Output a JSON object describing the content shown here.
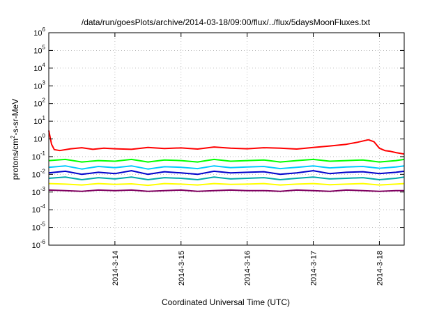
{
  "chart_data": {
    "type": "line",
    "title": "/data/run/goesPlots/archive/2014-03-18/09:00/flux/../flux/5daysMoonFluxes.txt",
    "xlabel": "Coordinated Universal Time (UTC)",
    "ylabel": {
      "pre": "protons/cm",
      "sup": "2",
      "post": "-s-sr-MeV"
    },
    "y_scale": "log",
    "ylim": [
      "1e-6",
      "1e6"
    ],
    "xlim": [
      "2014-03-13T00:00",
      "2014-03-18T09:00"
    ],
    "grid": true,
    "legend": "none",
    "y_ticks": [
      {
        "value": "1e6",
        "base": "10",
        "exp": "6"
      },
      {
        "value": "1e5",
        "base": "10",
        "exp": "5"
      },
      {
        "value": "1e4",
        "base": "10",
        "exp": "4"
      },
      {
        "value": "1e3",
        "base": "10",
        "exp": "3"
      },
      {
        "value": "1e2",
        "base": "10",
        "exp": "2"
      },
      {
        "value": "1e1",
        "base": "10",
        "exp": "1"
      },
      {
        "value": "1e0",
        "base": "10",
        "exp": "0"
      },
      {
        "value": "1e-1",
        "base": "10",
        "exp": "-1"
      },
      {
        "value": "1e-2",
        "base": "10",
        "exp": "-2"
      },
      {
        "value": "1e-3",
        "base": "10",
        "exp": "-3"
      },
      {
        "value": "1e-4",
        "base": "10",
        "exp": "-4"
      },
      {
        "value": "1e-5",
        "base": "10",
        "exp": "-5"
      },
      {
        "value": "1e-6",
        "base": "10",
        "exp": "-6"
      }
    ],
    "x_ticks": [
      {
        "date": "2014-03-14T00:00",
        "label": "2014-3-14"
      },
      {
        "date": "2014-03-15T00:00",
        "label": "2014-3-15"
      },
      {
        "date": "2014-03-16T00:00",
        "label": "2014-3-16"
      },
      {
        "date": "2014-03-17T00:00",
        "label": "2014-3-17"
      },
      {
        "date": "2014-03-18T00:00",
        "label": "2014-3-18"
      }
    ],
    "series": [
      {
        "color": "#ff0000",
        "x": [
          "2014-03-13T00:00",
          "2014-03-13T01:00",
          "2014-03-13T02:00",
          "2014-03-13T04:00",
          "2014-03-13T08:00",
          "2014-03-13T12:00",
          "2014-03-13T16:00",
          "2014-03-13T20:00",
          "2014-03-14T00:00",
          "2014-03-14T06:00",
          "2014-03-14T12:00",
          "2014-03-14T18:00",
          "2014-03-15T00:00",
          "2014-03-15T06:00",
          "2014-03-15T12:00",
          "2014-03-15T18:00",
          "2014-03-16T00:00",
          "2014-03-16T06:00",
          "2014-03-16T12:00",
          "2014-03-16T18:00",
          "2014-03-17T00:00",
          "2014-03-17T06:00",
          "2014-03-17T12:00",
          "2014-03-17T16:00",
          "2014-03-17T20:00",
          "2014-03-17T22:00",
          "2014-03-18T00:00",
          "2014-03-18T02:00",
          "2014-03-18T04:00",
          "2014-03-18T06:00",
          "2014-03-18T09:00"
        ],
        "y": [
          3.0,
          0.5,
          0.25,
          0.22,
          0.28,
          0.32,
          0.26,
          0.3,
          0.28,
          0.26,
          0.33,
          0.29,
          0.31,
          0.27,
          0.35,
          0.3,
          0.28,
          0.32,
          0.3,
          0.27,
          0.33,
          0.4,
          0.5,
          0.65,
          0.9,
          0.7,
          0.3,
          0.22,
          0.2,
          0.17,
          0.14
        ]
      },
      {
        "color": "#00ff00",
        "x": [
          "2014-03-13T00:00",
          "2014-03-13T06:00",
          "2014-03-13T12:00",
          "2014-03-13T18:00",
          "2014-03-14T00:00",
          "2014-03-14T06:00",
          "2014-03-14T12:00",
          "2014-03-14T18:00",
          "2014-03-15T00:00",
          "2014-03-15T06:00",
          "2014-03-15T12:00",
          "2014-03-15T18:00",
          "2014-03-16T00:00",
          "2014-03-16T06:00",
          "2014-03-16T12:00",
          "2014-03-16T18:00",
          "2014-03-17T00:00",
          "2014-03-17T06:00",
          "2014-03-17T12:00",
          "2014-03-17T18:00",
          "2014-03-18T00:00",
          "2014-03-18T06:00",
          "2014-03-18T09:00"
        ],
        "y": [
          0.06,
          0.07,
          0.05,
          0.06,
          0.055,
          0.07,
          0.05,
          0.065,
          0.06,
          0.05,
          0.07,
          0.055,
          0.06,
          0.065,
          0.05,
          0.06,
          0.07,
          0.055,
          0.06,
          0.065,
          0.05,
          0.06,
          0.07
        ]
      },
      {
        "color": "#00ccff",
        "x": [
          "2014-03-13T00:00",
          "2014-03-13T06:00",
          "2014-03-13T12:00",
          "2014-03-13T18:00",
          "2014-03-14T00:00",
          "2014-03-14T06:00",
          "2014-03-14T12:00",
          "2014-03-14T18:00",
          "2014-03-15T00:00",
          "2014-03-15T06:00",
          "2014-03-15T12:00",
          "2014-03-15T18:00",
          "2014-03-16T00:00",
          "2014-03-16T06:00",
          "2014-03-16T12:00",
          "2014-03-16T18:00",
          "2014-03-17T00:00",
          "2014-03-17T06:00",
          "2014-03-17T12:00",
          "2014-03-17T18:00",
          "2014-03-18T00:00",
          "2014-03-18T06:00",
          "2014-03-18T09:00"
        ],
        "y": [
          0.025,
          0.03,
          0.02,
          0.028,
          0.024,
          0.03,
          0.02,
          0.027,
          0.025,
          0.021,
          0.03,
          0.024,
          0.026,
          0.028,
          0.021,
          0.025,
          0.03,
          0.023,
          0.026,
          0.028,
          0.022,
          0.026,
          0.03
        ]
      },
      {
        "color": "#0000cc",
        "x": [
          "2014-03-13T00:00",
          "2014-03-13T06:00",
          "2014-03-13T12:00",
          "2014-03-13T18:00",
          "2014-03-14T00:00",
          "2014-03-14T06:00",
          "2014-03-14T12:00",
          "2014-03-14T18:00",
          "2014-03-15T00:00",
          "2014-03-15T06:00",
          "2014-03-15T12:00",
          "2014-03-15T18:00",
          "2014-03-16T00:00",
          "2014-03-16T06:00",
          "2014-03-16T12:00",
          "2014-03-16T18:00",
          "2014-03-17T00:00",
          "2014-03-17T06:00",
          "2014-03-17T12:00",
          "2014-03-17T18:00",
          "2014-03-18T00:00",
          "2014-03-18T06:00",
          "2014-03-18T09:00"
        ],
        "y": [
          0.012,
          0.015,
          0.01,
          0.013,
          0.011,
          0.016,
          0.01,
          0.014,
          0.012,
          0.01,
          0.015,
          0.012,
          0.013,
          0.014,
          0.01,
          0.012,
          0.016,
          0.011,
          0.013,
          0.014,
          0.011,
          0.013,
          0.015
        ]
      },
      {
        "color": "#00aaaa",
        "x": [
          "2014-03-13T00:00",
          "2014-03-13T06:00",
          "2014-03-13T12:00",
          "2014-03-13T18:00",
          "2014-03-14T00:00",
          "2014-03-14T06:00",
          "2014-03-14T12:00",
          "2014-03-14T18:00",
          "2014-03-15T00:00",
          "2014-03-15T06:00",
          "2014-03-15T12:00",
          "2014-03-15T18:00",
          "2014-03-16T00:00",
          "2014-03-16T06:00",
          "2014-03-16T12:00",
          "2014-03-16T18:00",
          "2014-03-17T00:00",
          "2014-03-17T06:00",
          "2014-03-17T12:00",
          "2014-03-17T18:00",
          "2014-03-18T00:00",
          "2014-03-18T06:00",
          "2014-03-18T09:00"
        ],
        "y": [
          0.006,
          0.007,
          0.005,
          0.0065,
          0.0055,
          0.007,
          0.005,
          0.0065,
          0.006,
          0.005,
          0.007,
          0.0055,
          0.006,
          0.0065,
          0.005,
          0.006,
          0.007,
          0.0055,
          0.006,
          0.0065,
          0.005,
          0.006,
          0.007
        ]
      },
      {
        "color": "#ffff00",
        "x": [
          "2014-03-13T00:00",
          "2014-03-13T06:00",
          "2014-03-13T12:00",
          "2014-03-13T18:00",
          "2014-03-14T00:00",
          "2014-03-14T06:00",
          "2014-03-14T12:00",
          "2014-03-14T18:00",
          "2014-03-15T00:00",
          "2014-03-15T06:00",
          "2014-03-15T12:00",
          "2014-03-15T18:00",
          "2014-03-16T00:00",
          "2014-03-16T06:00",
          "2014-03-16T12:00",
          "2014-03-16T18:00",
          "2014-03-17T00:00",
          "2014-03-17T06:00",
          "2014-03-17T12:00",
          "2014-03-17T18:00",
          "2014-03-18T00:00",
          "2014-03-18T06:00",
          "2014-03-18T09:00"
        ],
        "y": [
          0.003,
          0.0028,
          0.0025,
          0.003,
          0.0027,
          0.0029,
          0.0024,
          0.003,
          0.0028,
          0.0025,
          0.003,
          0.0027,
          0.0028,
          0.003,
          0.0025,
          0.0028,
          0.003,
          0.0026,
          0.0028,
          0.003,
          0.0025,
          0.0028,
          0.003
        ]
      },
      {
        "color": "#800060",
        "x": [
          "2014-03-13T00:00",
          "2014-03-13T06:00",
          "2014-03-13T12:00",
          "2014-03-13T18:00",
          "2014-03-14T00:00",
          "2014-03-14T06:00",
          "2014-03-14T12:00",
          "2014-03-14T18:00",
          "2014-03-15T00:00",
          "2014-03-15T06:00",
          "2014-03-15T12:00",
          "2014-03-15T18:00",
          "2014-03-16T00:00",
          "2014-03-16T06:00",
          "2014-03-16T12:00",
          "2014-03-16T18:00",
          "2014-03-17T00:00",
          "2014-03-17T06:00",
          "2014-03-17T12:00",
          "2014-03-17T18:00",
          "2014-03-18T00:00",
          "2014-03-18T06:00",
          "2014-03-18T09:00"
        ],
        "y": [
          0.0013,
          0.0012,
          0.0011,
          0.0013,
          0.0012,
          0.0013,
          0.0011,
          0.0012,
          0.0013,
          0.0011,
          0.0012,
          0.0013,
          0.0012,
          0.0012,
          0.0011,
          0.0013,
          0.0012,
          0.0011,
          0.0013,
          0.0012,
          0.0011,
          0.0012,
          0.0012
        ]
      }
    ]
  }
}
